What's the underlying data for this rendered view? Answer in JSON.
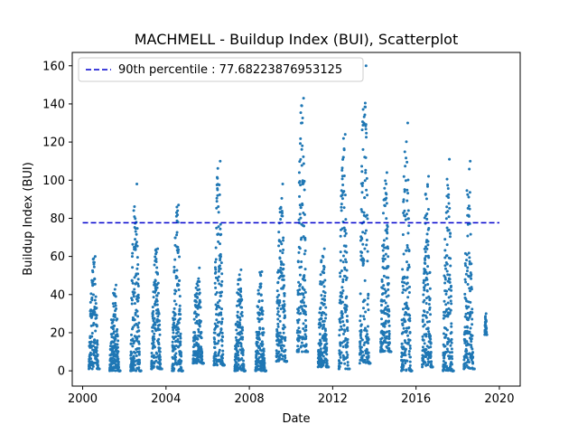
{
  "chart_data": {
    "type": "scatter",
    "title": "MACHMELL - Buildup Index (BUI), Scatterplot",
    "xlabel": "Date",
    "ylabel": "Buildup Index (BUI)",
    "xlim": [
      1999.5,
      2021.0
    ],
    "ylim": [
      -8,
      167
    ],
    "xticks": [
      2000,
      2004,
      2008,
      2012,
      2016,
      2020
    ],
    "xtick_labels": [
      "2000",
      "2004",
      "2008",
      "2012",
      "2016",
      "2020"
    ],
    "yticks": [
      0,
      20,
      40,
      60,
      80,
      100,
      120,
      140,
      160
    ],
    "ytick_labels": [
      "0",
      "20",
      "40",
      "60",
      "80",
      "100",
      "120",
      "140",
      "160"
    ],
    "grid": false,
    "legend_position": "top-left",
    "reference_line": {
      "label": "90th percentile : 77.68223876953125",
      "value": 77.68223876953125,
      "x_range": [
        2000.0,
        2020.0
      ],
      "color": "#0000cd",
      "style": "dashed"
    },
    "series": [
      {
        "color": "#1f77b4",
        "seasons": [
          {
            "year": 2000,
            "start": 2000.3,
            "end": 2000.8,
            "max": 60,
            "min": 1
          },
          {
            "year": 2001,
            "start": 2001.3,
            "end": 2001.8,
            "max": 45,
            "min": 0
          },
          {
            "year": 2002,
            "start": 2002.3,
            "end": 2002.8,
            "max": 98,
            "min": 0
          },
          {
            "year": 2003,
            "start": 2003.3,
            "end": 2003.8,
            "max": 64,
            "min": 1
          },
          {
            "year": 2004,
            "start": 2004.3,
            "end": 2004.8,
            "max": 87,
            "min": 0
          },
          {
            "year": 2005,
            "start": 2005.3,
            "end": 2005.8,
            "max": 54,
            "min": 4
          },
          {
            "year": 2006,
            "start": 2006.3,
            "end": 2006.8,
            "max": 110,
            "min": 3
          },
          {
            "year": 2007,
            "start": 2007.3,
            "end": 2007.8,
            "max": 53,
            "min": 0
          },
          {
            "year": 2008,
            "start": 2008.3,
            "end": 2008.8,
            "max": 52,
            "min": 0
          },
          {
            "year": 2009,
            "start": 2009.3,
            "end": 2009.8,
            "max": 98,
            "min": 5
          },
          {
            "year": 2010,
            "start": 2010.3,
            "end": 2010.8,
            "max": 143,
            "min": 10
          },
          {
            "year": 2011,
            "start": 2011.3,
            "end": 2011.8,
            "max": 64,
            "min": 2
          },
          {
            "year": 2012,
            "start": 2012.3,
            "end": 2012.8,
            "max": 124,
            "min": 1
          },
          {
            "year": 2013,
            "start": 2013.3,
            "end": 2013.8,
            "max": 160,
            "min": 4
          },
          {
            "year": 2014,
            "start": 2014.3,
            "end": 2014.8,
            "max": 104,
            "min": 10
          },
          {
            "year": 2015,
            "start": 2015.3,
            "end": 2015.8,
            "max": 130,
            "min": 0
          },
          {
            "year": 2016,
            "start": 2016.3,
            "end": 2016.8,
            "max": 102,
            "min": 2
          },
          {
            "year": 2017,
            "start": 2017.3,
            "end": 2017.8,
            "max": 111,
            "min": 0
          },
          {
            "year": 2018,
            "start": 2018.3,
            "end": 2018.8,
            "max": 110,
            "min": 1
          },
          {
            "year": 2019,
            "start": 2019.3,
            "end": 2019.4,
            "max": 30,
            "min": 19
          }
        ]
      }
    ]
  }
}
